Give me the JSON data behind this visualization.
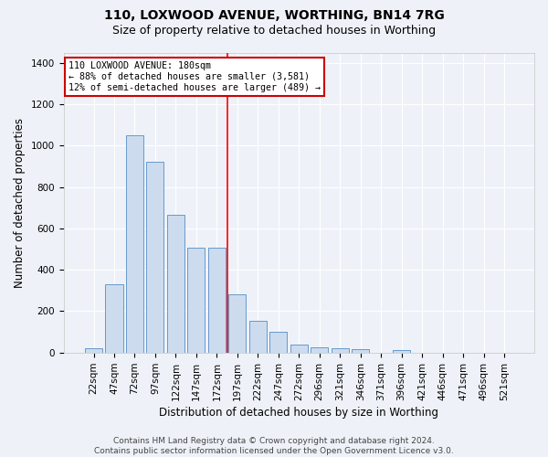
{
  "title": "110, LOXWOOD AVENUE, WORTHING, BN14 7RG",
  "subtitle": "Size of property relative to detached houses in Worthing",
  "xlabel": "Distribution of detached houses by size in Worthing",
  "ylabel": "Number of detached properties",
  "categories": [
    "22sqm",
    "47sqm",
    "72sqm",
    "97sqm",
    "122sqm",
    "147sqm",
    "172sqm",
    "197sqm",
    "222sqm",
    "247sqm",
    "272sqm",
    "296sqm",
    "321sqm",
    "346sqm",
    "371sqm",
    "396sqm",
    "421sqm",
    "446sqm",
    "471sqm",
    "496sqm",
    "521sqm"
  ],
  "values": [
    20,
    330,
    1050,
    920,
    665,
    505,
    505,
    280,
    155,
    100,
    40,
    25,
    22,
    15,
    0,
    12,
    0,
    0,
    0,
    0,
    0
  ],
  "bar_color": "#ccdcee",
  "bar_edge_color": "#6699cc",
  "red_line_index": 7,
  "annotation_line1": "110 LOXWOOD AVENUE: 180sqm",
  "annotation_line2": "← 88% of detached houses are smaller (3,581)",
  "annotation_line3": "12% of semi-detached houses are larger (489) →",
  "annotation_box_color": "#ffffff",
  "annotation_box_edge": "#cc0000",
  "footer": "Contains HM Land Registry data © Crown copyright and database right 2024.\nContains public sector information licensed under the Open Government Licence v3.0.",
  "ylim": [
    0,
    1450
  ],
  "background_color": "#eef2f8",
  "grid_color": "#ffffff",
  "title_fontsize": 10,
  "subtitle_fontsize": 9,
  "axis_label_fontsize": 8.5,
  "tick_fontsize": 7.5,
  "footer_fontsize": 6.5
}
